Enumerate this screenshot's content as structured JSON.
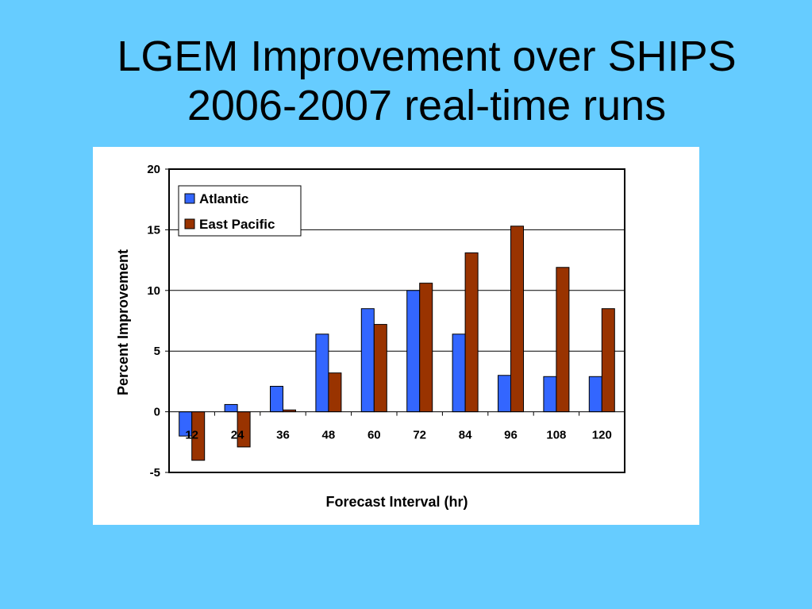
{
  "slide": {
    "title_line1": "LGEM Improvement over SHIPS",
    "title_line2": "2006-2007 real-time runs"
  },
  "chart_data": {
    "type": "bar",
    "title": "",
    "xlabel": "Forecast Interval (hr)",
    "ylabel": "Percent Improvement",
    "categories": [
      "12",
      "24",
      "36",
      "48",
      "60",
      "72",
      "84",
      "96",
      "108",
      "120"
    ],
    "series": [
      {
        "name": "Atlantic",
        "color": "#3366ff",
        "values": [
          -2.0,
          0.6,
          2.1,
          6.4,
          8.5,
          10.0,
          6.4,
          3.0,
          2.9,
          2.9
        ]
      },
      {
        "name": "East Pacific",
        "color": "#993300",
        "values": [
          -4.0,
          -2.9,
          0.15,
          3.2,
          7.2,
          10.6,
          13.1,
          15.3,
          11.9,
          8.5
        ]
      }
    ],
    "ylim": [
      -5,
      20
    ],
    "yticks": [
      -5,
      0,
      5,
      10,
      15,
      20
    ],
    "grid": true,
    "legend": "top-left"
  }
}
